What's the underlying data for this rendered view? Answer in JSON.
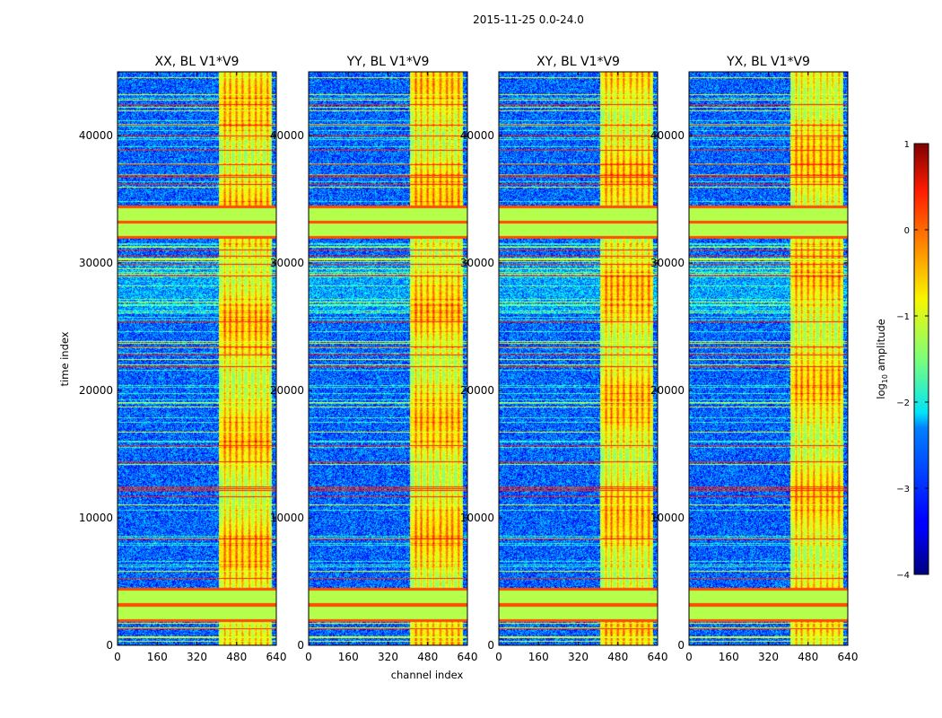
{
  "chart_data": {
    "type": "heatmap",
    "suptitle": "2015-11-25 0.0-24.0",
    "xlabel": "channel index",
    "ylabel": "time index",
    "xlim": [
      0,
      640
    ],
    "ylim": [
      0,
      45000
    ],
    "xticks": [
      "0",
      "160",
      "320",
      "480",
      "640"
    ],
    "yticks": [
      "0",
      "10000",
      "20000",
      "30000",
      "40000"
    ],
    "xtick_values": [
      0,
      160,
      320,
      480,
      640
    ],
    "ytick_values": [
      0,
      10000,
      20000,
      30000,
      40000
    ],
    "panels": [
      {
        "title": "XX, BL V1*V9",
        "bright_band_channels": [
          405,
          620
        ]
      },
      {
        "title": "YY, BL V1*V9",
        "bright_band_channels": [
          405,
          620
        ]
      },
      {
        "title": "XY, BL V1*V9",
        "bright_band_channels": [
          405,
          620
        ]
      },
      {
        "title": "YX, BL V1*V9",
        "bright_band_channels": [
          405,
          620
        ]
      }
    ],
    "flagged_time_ranges": [
      [
        1900,
        4500
      ],
      [
        32000,
        34500
      ]
    ],
    "rfi_channels": [
      [
        405,
        620
      ]
    ],
    "colorbar": {
      "label": "log10 amplitude",
      "label_base": "log",
      "label_subscript": "10",
      "label_rest": " amplitude",
      "range": [
        -4,
        1
      ],
      "tick_values": [
        -4,
        -3,
        -2,
        -1,
        0,
        1
      ],
      "ticks": [
        "−4",
        "−3",
        "−2",
        "−1",
        "0",
        "1"
      ],
      "colormap": "jet"
    }
  }
}
